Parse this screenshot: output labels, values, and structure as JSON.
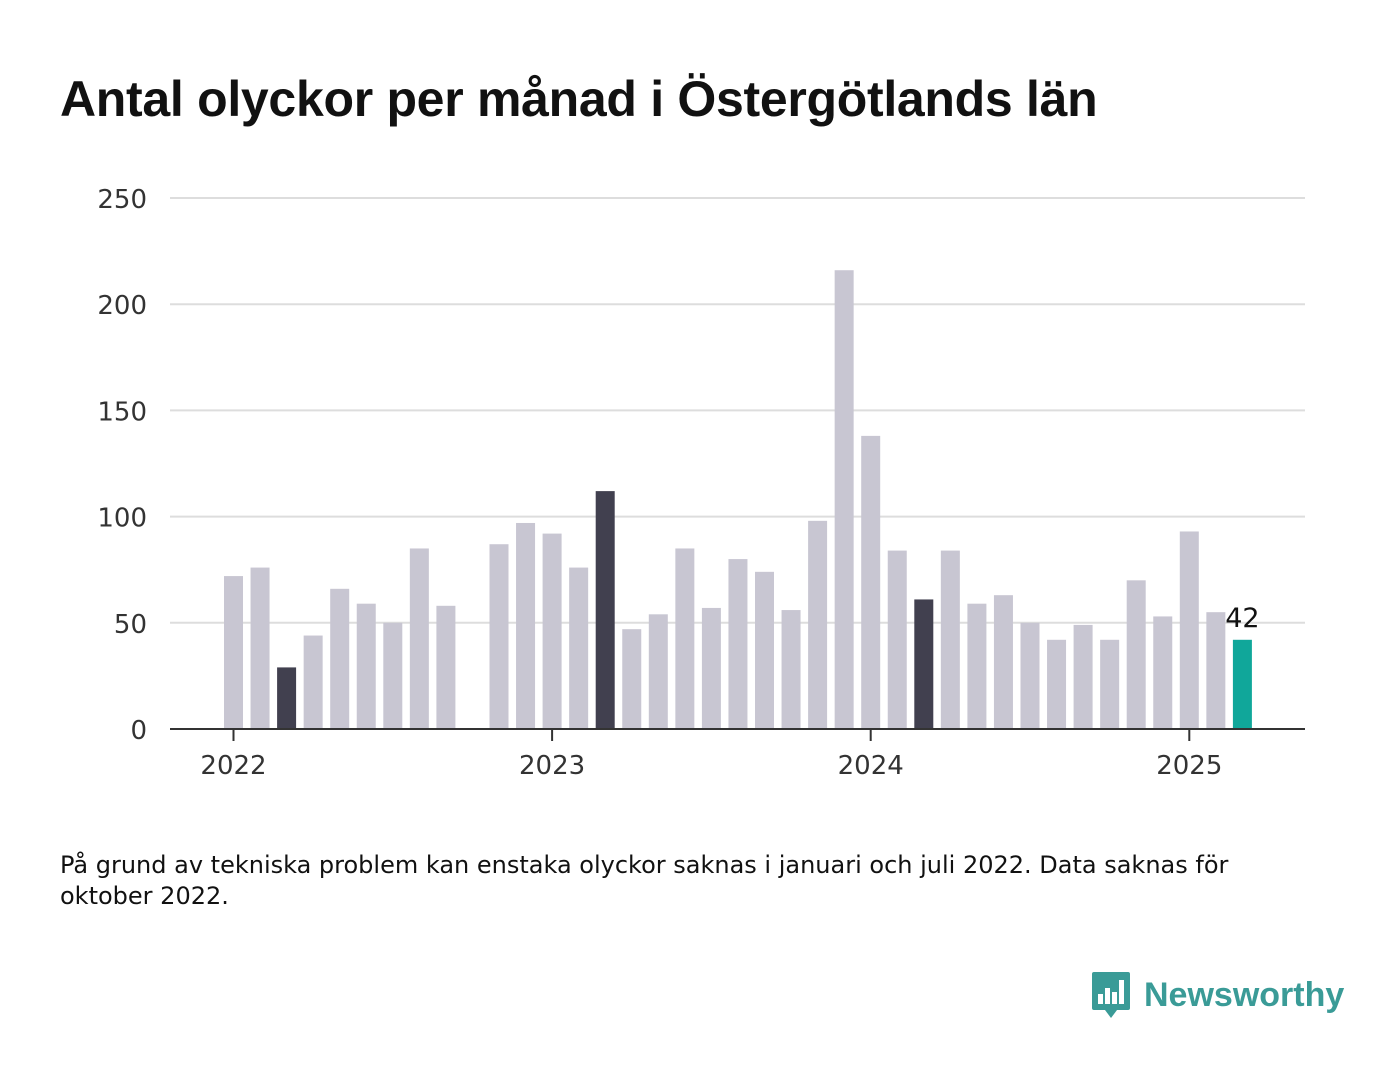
{
  "title": "Antal olyckor per månad i Östergötlands län",
  "note": "På grund av tekniska problem kan enstaka olyckor saknas i januari och juli 2022. Data saknas för oktober 2022.",
  "brand": {
    "name": "Newsworthy",
    "logo_icon": "bar-chart-speech-bubble-icon",
    "color": "#3a9b97"
  },
  "chart_data": {
    "type": "bar",
    "title": "Antal olyckor per månad i Östergötlands län",
    "xlabel": "",
    "ylabel": "",
    "ylim": [
      0,
      250
    ],
    "y_ticks": [
      0,
      50,
      100,
      150,
      200,
      250
    ],
    "x_ticks": [
      "2022",
      "2023",
      "2024",
      "2025"
    ],
    "grid": true,
    "legend": "none",
    "colors": {
      "default": "#c8c6d2",
      "highlight": "#41404f",
      "latest": "#10a79a",
      "grid": "#dddddd",
      "axis": "#333333"
    },
    "categories": [
      "2022-01",
      "2022-02",
      "2022-03",
      "2022-04",
      "2022-05",
      "2022-06",
      "2022-07",
      "2022-08",
      "2022-09",
      "2022-10",
      "2022-11",
      "2022-12",
      "2023-01",
      "2023-02",
      "2023-03",
      "2023-04",
      "2023-05",
      "2023-06",
      "2023-07",
      "2023-08",
      "2023-09",
      "2023-10",
      "2023-11",
      "2023-12",
      "2024-01",
      "2024-02",
      "2024-03",
      "2024-04",
      "2024-05",
      "2024-06",
      "2024-07",
      "2024-08",
      "2024-09",
      "2024-10",
      "2024-11",
      "2024-12",
      "2025-01",
      "2025-02",
      "2025-03"
    ],
    "values": [
      72,
      76,
      29,
      44,
      66,
      59,
      50,
      85,
      58,
      null,
      87,
      97,
      92,
      76,
      112,
      47,
      54,
      85,
      57,
      80,
      74,
      56,
      98,
      216,
      138,
      84,
      61,
      84,
      59,
      63,
      50,
      42,
      49,
      42,
      70,
      53,
      93,
      55,
      42
    ],
    "highlight": [
      "2022-03",
      "2023-03",
      "2024-03"
    ],
    "latest": "2025-03",
    "annotations": [
      {
        "category": "2025-03",
        "text": "42"
      }
    ]
  }
}
